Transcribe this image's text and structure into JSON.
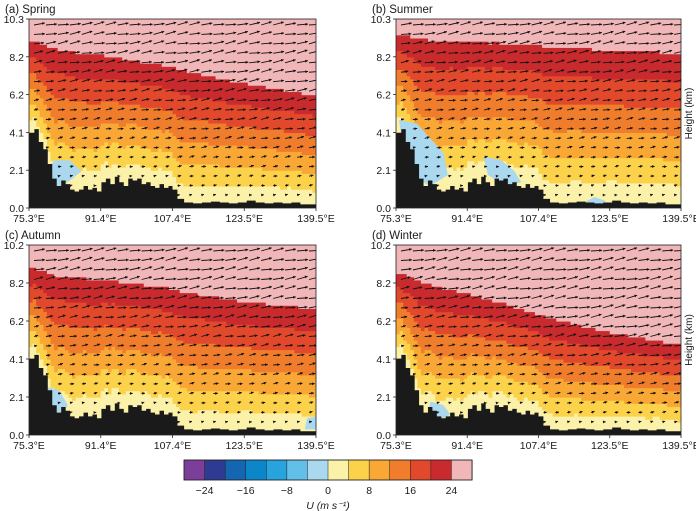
{
  "chart_data": [
    {
      "type": "heatmap",
      "panel": "(a) Spring",
      "title": "(a) Spring",
      "xticks": [
        "75.3°E",
        "91.4°E",
        "107.4°E",
        "123.5°E",
        "139.5°E"
      ],
      "yticks": [
        "0.0",
        "2.1",
        "4.1",
        "6.2",
        "8.2",
        "10.3"
      ],
      "xlim": [
        75.3,
        139.5
      ],
      "ylim": [
        0.0,
        10.3
      ],
      "jet_core": {
        "lon": [
          75.3,
          91.4,
          107.4,
          123.5,
          139.5
        ],
        "height_km": [
          9.6,
          9.0,
          8.3,
          7.4,
          6.7
        ]
      },
      "terrain_height_km": [
        [
          75.3,
          4.1
        ],
        [
          76.5,
          4.3
        ],
        [
          77.5,
          3.6
        ],
        [
          78.5,
          3.2
        ],
        [
          79.5,
          2.4
        ],
        [
          80.5,
          1.6
        ],
        [
          81.5,
          1.2
        ],
        [
          82.5,
          1.5
        ],
        [
          83.5,
          1.3
        ],
        [
          84.5,
          1.0
        ],
        [
          85.5,
          0.9
        ],
        [
          86.5,
          1.0
        ],
        [
          87.5,
          1.2
        ],
        [
          88.5,
          1.0
        ],
        [
          89.5,
          1.1
        ],
        [
          90.5,
          0.9
        ],
        [
          91.5,
          1.4
        ],
        [
          92.5,
          1.6
        ],
        [
          93.5,
          1.3
        ],
        [
          94.5,
          1.7
        ],
        [
          95.5,
          1.4
        ],
        [
          96.5,
          1.2
        ],
        [
          97.5,
          1.6
        ],
        [
          98.5,
          1.5
        ],
        [
          99.5,
          1.6
        ],
        [
          100.5,
          1.3
        ],
        [
          101.5,
          1.4
        ],
        [
          102.5,
          1.2
        ],
        [
          103.5,
          1.1
        ],
        [
          104.5,
          1.3
        ],
        [
          105.5,
          1.1
        ],
        [
          106.5,
          1.2
        ],
        [
          107.4,
          1.0
        ],
        [
          108.5,
          0.5
        ],
        [
          110,
          0.3
        ],
        [
          112,
          0.25
        ],
        [
          114,
          0.3
        ],
        [
          116,
          0.35
        ],
        [
          118,
          0.3
        ],
        [
          120,
          0.25
        ],
        [
          122,
          0.3
        ],
        [
          124,
          0.4
        ],
        [
          126,
          0.3
        ],
        [
          128,
          0.25
        ],
        [
          130,
          0.3
        ],
        [
          132,
          0.25
        ],
        [
          134,
          0.3
        ],
        [
          136,
          0.2
        ],
        [
          139.5,
          0.1
        ]
      ],
      "negative_regions": [
        [
          [
            79.5,
            1.4
          ],
          [
            82,
            1.1
          ],
          [
            85,
            1.6
          ],
          [
            87,
            2.0
          ],
          [
            84.5,
            2.6
          ],
          [
            81,
            2.6
          ],
          [
            79.5,
            2.1
          ]
        ]
      ],
      "contour_levels_ms": [
        0,
        4,
        8,
        12,
        16,
        20,
        24
      ]
    },
    {
      "type": "heatmap",
      "panel": "(b) Summer",
      "title": "(b) Summer",
      "xticks": [
        "75.3°E",
        "91.4°E",
        "107.4°E",
        "123.5°E",
        "139.5°E"
      ],
      "yticks": [
        "0.0",
        "2.1",
        "4.1",
        "6.2",
        "8.2",
        "10.3"
      ],
      "xlim": [
        75.3,
        139.5
      ],
      "ylim": [
        0.0,
        10.3
      ],
      "ylabel": "Height (km)",
      "jet_core": {
        "lon": [
          75.3,
          91.4,
          107.4,
          123.5,
          139.5
        ],
        "height_km": [
          10.0,
          9.8,
          9.6,
          9.4,
          9.2
        ]
      },
      "terrain_height_km": [
        [
          75.3,
          4.1
        ],
        [
          76.5,
          4.3
        ],
        [
          77.5,
          3.6
        ],
        [
          78.5,
          3.2
        ],
        [
          79.5,
          2.4
        ],
        [
          80.5,
          1.6
        ],
        [
          81.5,
          1.2
        ],
        [
          82.5,
          1.5
        ],
        [
          83.5,
          1.3
        ],
        [
          84.5,
          1.0
        ],
        [
          85.5,
          0.9
        ],
        [
          86.5,
          1.0
        ],
        [
          87.5,
          1.2
        ],
        [
          88.5,
          1.0
        ],
        [
          89.5,
          1.1
        ],
        [
          90.5,
          0.9
        ],
        [
          91.5,
          1.4
        ],
        [
          92.5,
          1.6
        ],
        [
          93.5,
          1.3
        ],
        [
          94.5,
          1.7
        ],
        [
          95.5,
          1.4
        ],
        [
          96.5,
          1.2
        ],
        [
          97.5,
          1.6
        ],
        [
          98.5,
          1.5
        ],
        [
          99.5,
          1.6
        ],
        [
          100.5,
          1.3
        ],
        [
          101.5,
          1.4
        ],
        [
          102.5,
          1.2
        ],
        [
          103.5,
          1.1
        ],
        [
          104.5,
          1.3
        ],
        [
          105.5,
          1.1
        ],
        [
          106.5,
          1.2
        ],
        [
          107.4,
          1.0
        ],
        [
          108.5,
          0.5
        ],
        [
          110,
          0.3
        ],
        [
          112,
          0.25
        ],
        [
          114,
          0.3
        ],
        [
          116,
          0.35
        ],
        [
          118,
          0.3
        ],
        [
          120,
          0.25
        ],
        [
          122,
          0.3
        ],
        [
          124,
          0.4
        ],
        [
          126,
          0.3
        ],
        [
          128,
          0.25
        ],
        [
          130,
          0.3
        ],
        [
          132,
          0.25
        ],
        [
          134,
          0.3
        ],
        [
          136,
          0.2
        ],
        [
          139.5,
          0.1
        ]
      ],
      "negative_regions": [
        [
          [
            76,
            4.8
          ],
          [
            80,
            4.6
          ],
          [
            83,
            3.8
          ],
          [
            86,
            3.0
          ],
          [
            87,
            1.8
          ],
          [
            83,
            1.2
          ],
          [
            80,
            1.6
          ],
          [
            77,
            3.0
          ]
        ],
        [
          [
            95,
            2.8
          ],
          [
            99,
            2.6
          ],
          [
            102,
            2.0
          ],
          [
            103.5,
            1.4
          ],
          [
            100,
            1.2
          ],
          [
            96,
            1.8
          ]
        ],
        [
          [
            117,
            0.2
          ],
          [
            120,
            0.6
          ],
          [
            122.5,
            0.4
          ],
          [
            122,
            0.1
          ]
        ]
      ],
      "contour_levels_ms": [
        0,
        4,
        8,
        12,
        16,
        20,
        24
      ]
    },
    {
      "type": "heatmap",
      "panel": "(c) Autumn",
      "title": "(c) Autumn",
      "xticks": [
        "75.3°E",
        "91.4°E",
        "107.4°E",
        "123.5°E",
        "139.5°E"
      ],
      "yticks": [
        "0.0",
        "2.1",
        "4.1",
        "6.2",
        "8.2",
        "10.2"
      ],
      "xlim": [
        75.3,
        139.5
      ],
      "ylim": [
        0.0,
        10.2
      ],
      "jet_core": {
        "lon": [
          75.3,
          91.4,
          107.4,
          123.5,
          139.5
        ],
        "height_km": [
          9.4,
          9.0,
          8.5,
          7.8,
          7.4
        ]
      },
      "terrain_height_km": [
        [
          75.3,
          4.1
        ],
        [
          76.5,
          4.3
        ],
        [
          77.5,
          3.6
        ],
        [
          78.5,
          3.2
        ],
        [
          79.5,
          2.4
        ],
        [
          80.5,
          1.6
        ],
        [
          81.5,
          1.2
        ],
        [
          82.5,
          1.5
        ],
        [
          83.5,
          1.3
        ],
        [
          84.5,
          1.0
        ],
        [
          85.5,
          0.9
        ],
        [
          86.5,
          1.0
        ],
        [
          87.5,
          1.2
        ],
        [
          88.5,
          1.0
        ],
        [
          89.5,
          1.1
        ],
        [
          90.5,
          0.9
        ],
        [
          91.5,
          1.4
        ],
        [
          92.5,
          1.6
        ],
        [
          93.5,
          1.3
        ],
        [
          94.5,
          1.7
        ],
        [
          95.5,
          1.4
        ],
        [
          96.5,
          1.2
        ],
        [
          97.5,
          1.6
        ],
        [
          98.5,
          1.5
        ],
        [
          99.5,
          1.6
        ],
        [
          100.5,
          1.3
        ],
        [
          101.5,
          1.4
        ],
        [
          102.5,
          1.2
        ],
        [
          103.5,
          1.1
        ],
        [
          104.5,
          1.3
        ],
        [
          105.5,
          1.1
        ],
        [
          106.5,
          1.2
        ],
        [
          107.4,
          1.0
        ],
        [
          108.5,
          0.5
        ],
        [
          110,
          0.3
        ],
        [
          112,
          0.25
        ],
        [
          114,
          0.3
        ],
        [
          116,
          0.35
        ],
        [
          118,
          0.3
        ],
        [
          120,
          0.25
        ],
        [
          122,
          0.3
        ],
        [
          124,
          0.4
        ],
        [
          126,
          0.3
        ],
        [
          128,
          0.25
        ],
        [
          130,
          0.3
        ],
        [
          132,
          0.25
        ],
        [
          134,
          0.3
        ],
        [
          136,
          0.2
        ],
        [
          139.5,
          0.1
        ]
      ],
      "negative_regions": [
        [
          [
            79,
            2.6
          ],
          [
            82,
            2.4
          ],
          [
            84,
            1.6
          ],
          [
            82.5,
            1.1
          ],
          [
            80,
            1.2
          ],
          [
            79,
            1.8
          ]
        ],
        [
          [
            137,
            0.3
          ],
          [
            139.5,
            0.3
          ],
          [
            139.5,
            1.0
          ],
          [
            137.5,
            0.9
          ]
        ]
      ],
      "contour_levels_ms": [
        0,
        4,
        8,
        12,
        16,
        20,
        24
      ]
    },
    {
      "type": "heatmap",
      "panel": "(d) Winter",
      "title": "(d) Winter",
      "xticks": [
        "75.3°E",
        "91.4°E",
        "107.4°E",
        "123.5°E",
        "139.5°E"
      ],
      "yticks": [
        "0.0",
        "2.1",
        "4.1",
        "6.2",
        "8.2",
        "10.2"
      ],
      "xlim": [
        75.3,
        139.5
      ],
      "ylim": [
        0.0,
        10.2
      ],
      "ylabel": "Height (km)",
      "jet_core": {
        "lon": [
          75.3,
          91.4,
          107.4,
          123.5,
          139.5
        ],
        "height_km": [
          9.2,
          8.2,
          7.0,
          6.0,
          5.3
        ]
      },
      "terrain_height_km": [
        [
          75.3,
          4.1
        ],
        [
          76.5,
          4.3
        ],
        [
          77.5,
          3.6
        ],
        [
          78.5,
          3.2
        ],
        [
          79.5,
          2.4
        ],
        [
          80.5,
          1.6
        ],
        [
          81.5,
          1.2
        ],
        [
          82.5,
          1.5
        ],
        [
          83.5,
          1.3
        ],
        [
          84.5,
          1.0
        ],
        [
          85.5,
          0.9
        ],
        [
          86.5,
          1.0
        ],
        [
          87.5,
          1.2
        ],
        [
          88.5,
          1.0
        ],
        [
          89.5,
          1.1
        ],
        [
          90.5,
          0.9
        ],
        [
          91.5,
          1.4
        ],
        [
          92.5,
          1.6
        ],
        [
          93.5,
          1.3
        ],
        [
          94.5,
          1.7
        ],
        [
          95.5,
          1.4
        ],
        [
          96.5,
          1.2
        ],
        [
          97.5,
          1.6
        ],
        [
          98.5,
          1.5
        ],
        [
          99.5,
          1.6
        ],
        [
          100.5,
          1.3
        ],
        [
          101.5,
          1.4
        ],
        [
          102.5,
          1.2
        ],
        [
          103.5,
          1.1
        ],
        [
          104.5,
          1.3
        ],
        [
          105.5,
          1.1
        ],
        [
          106.5,
          1.2
        ],
        [
          107.4,
          1.0
        ],
        [
          108.5,
          0.5
        ],
        [
          110,
          0.3
        ],
        [
          112,
          0.25
        ],
        [
          114,
          0.3
        ],
        [
          116,
          0.35
        ],
        [
          118,
          0.3
        ],
        [
          120,
          0.25
        ],
        [
          122,
          0.3
        ],
        [
          124,
          0.4
        ],
        [
          126,
          0.3
        ],
        [
          128,
          0.25
        ],
        [
          130,
          0.3
        ],
        [
          132,
          0.25
        ],
        [
          134,
          0.3
        ],
        [
          136,
          0.2
        ],
        [
          139.5,
          0.1
        ]
      ],
      "negative_regions": [
        [
          [
            83,
            1.8
          ],
          [
            86,
            1.6
          ],
          [
            87.5,
            1.1
          ],
          [
            85,
            0.8
          ],
          [
            82.5,
            1.0
          ]
        ]
      ],
      "contour_levels_ms": [
        0,
        4,
        8,
        12,
        16,
        20,
        24
      ]
    }
  ],
  "colorbar": {
    "colors": [
      "#7c3e98",
      "#2f3a93",
      "#1466b0",
      "#0b86c8",
      "#27a3dd",
      "#62bfe8",
      "#a9d8ef",
      "#fbf1a9",
      "#fcd24a",
      "#f9a735",
      "#ef7d2c",
      "#e2482b",
      "#c92a2d",
      "#f0b6b8"
    ],
    "tick_labels": [
      "−24",
      "−16",
      "−8",
      "0",
      "8",
      "16",
      "24"
    ],
    "tick_values": [
      -24,
      -16,
      -8,
      0,
      8,
      16,
      24
    ],
    "label": "U (m s⁻¹)"
  },
  "colors": {
    "terrain": "#1a1a1a",
    "arrow": "#111111"
  }
}
